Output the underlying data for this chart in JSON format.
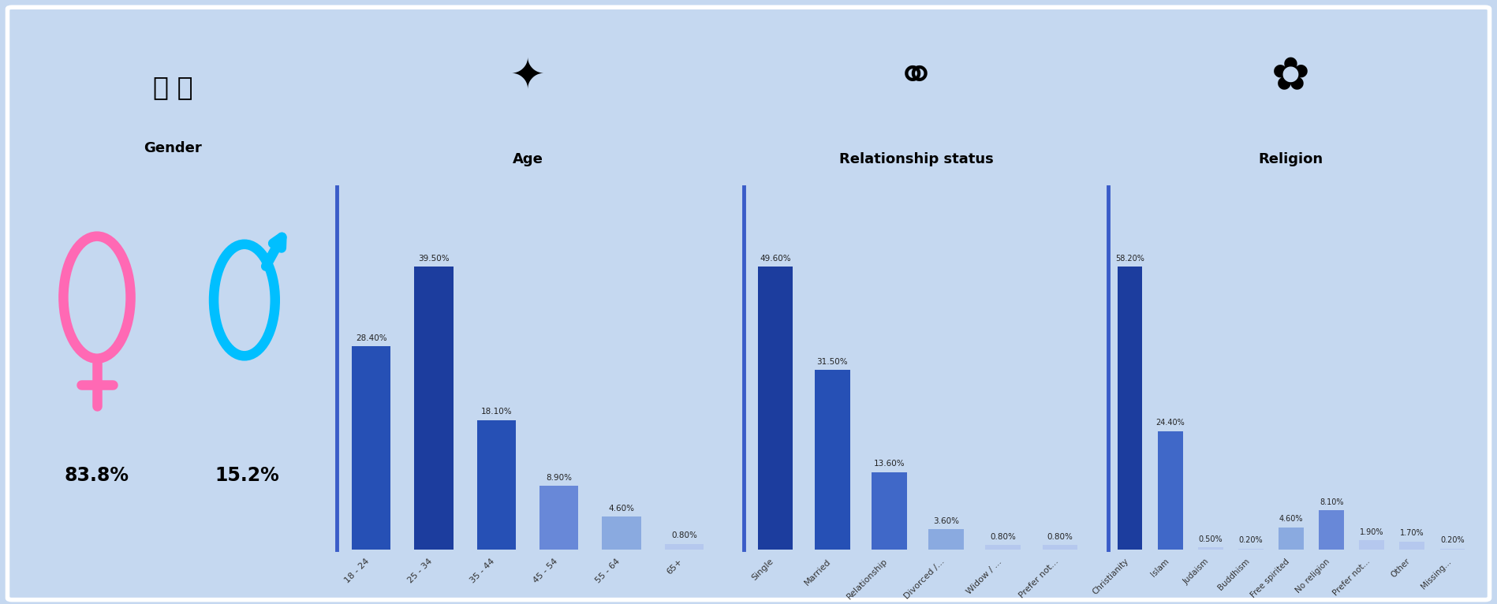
{
  "background_color": "#c5d8f0",
  "border_color": "#ffffff",
  "gender_female_pct": "83.8%",
  "gender_male_pct": "15.2%",
  "gender_female_color": "#ff69b4",
  "gender_male_color": "#00bfff",
  "age_labels": [
    "18 - 24",
    "25 - 34",
    "35 - 44",
    "45 - 54",
    "55 - 64",
    "65+"
  ],
  "age_values": [
    28.4,
    39.5,
    18.1,
    8.9,
    4.6,
    0.8
  ],
  "age_pct_labels": [
    "28.40%",
    "39.50%",
    "18.10%",
    "8.90%",
    "4.60%",
    "0.80%"
  ],
  "age_label": "Age",
  "rel_labels": [
    "Single",
    "Married",
    "Relationship",
    "Divorced /...",
    "Widow / ...",
    "Prefer not..."
  ],
  "rel_values": [
    49.6,
    31.5,
    13.6,
    3.6,
    0.8,
    0.8
  ],
  "rel_pct_labels": [
    "49.60%",
    "31.50%",
    "13.60%",
    "3.60%",
    "0.80%",
    "0.80%"
  ],
  "rel_label": "Relationship status",
  "religion_labels": [
    "Christianity",
    "Islam",
    "Judaism",
    "Buddhism",
    "Free spirited",
    "No religion",
    "Prefer not...",
    "Other",
    "Missing..."
  ],
  "religion_values": [
    58.2,
    24.4,
    0.5,
    0.2,
    4.6,
    8.1,
    1.9,
    1.7,
    0.2
  ],
  "religion_pct_labels": [
    "58.20%",
    "24.40%",
    "0.50%",
    "0.20%",
    "4.60%",
    "8.10%",
    "1.90%",
    "1.70%",
    "0.20%"
  ],
  "religion_label": "Religion",
  "value_fontsize": 7.5,
  "tick_fontsize": 8.0,
  "title_fontsize": 13,
  "gender_pct_fontsize": 17,
  "separator_color": "#3a5cc8",
  "bar_label_color": "#222222",
  "tick_color": "#333333"
}
